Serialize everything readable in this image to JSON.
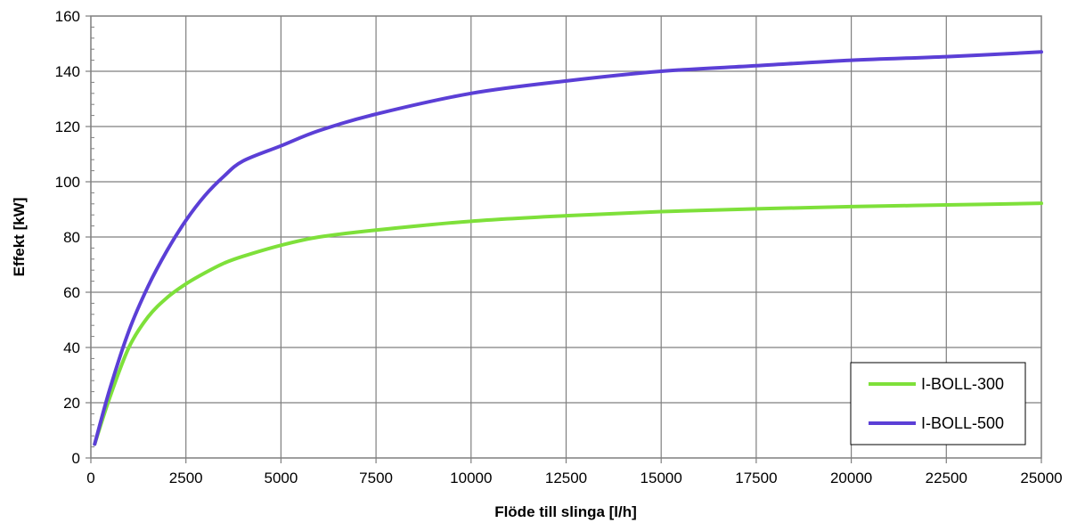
{
  "chart_data": {
    "type": "line",
    "xlabel": "Flöde till slinga [l/h]",
    "ylabel": "Effekt [kW]",
    "xlim": [
      0,
      25000
    ],
    "ylim": [
      0,
      160
    ],
    "x_ticks": [
      "0",
      "2500",
      "5000",
      "7500",
      "10000",
      "12500",
      "15000",
      "17500",
      "20000",
      "22500",
      "25000"
    ],
    "y_ticks": [
      "0",
      "20",
      "40",
      "60",
      "80",
      "100",
      "120",
      "140",
      "160"
    ],
    "grid": true,
    "legend_position": "bottom-right",
    "series": [
      {
        "name": "I-BOLL-300",
        "color": "#7ee03a",
        "x": [
          100,
          500,
          1000,
          1500,
          2000,
          2500,
          3000,
          3500,
          4000,
          5000,
          6000,
          7500,
          10000,
          12500,
          15000,
          17500,
          20000,
          22500,
          25000
        ],
        "y": [
          5,
          22,
          40,
          51,
          58,
          63,
          67,
          70.5,
          73,
          77,
          80,
          82.5,
          85.7,
          87.7,
          89.2,
          90.2,
          91,
          91.6,
          92.2
        ]
      },
      {
        "name": "I-BOLL-500",
        "color": "#5b3fd6",
        "x": [
          100,
          500,
          1000,
          1500,
          2000,
          2500,
          3000,
          3500,
          4000,
          5000,
          6000,
          7500,
          10000,
          12500,
          15000,
          17500,
          20000,
          22500,
          25000
        ],
        "y": [
          5,
          25,
          46,
          62,
          75,
          86,
          95,
          102,
          107.5,
          113,
          118.5,
          124.5,
          132,
          136.5,
          140,
          142,
          144,
          145.3,
          147
        ]
      }
    ]
  }
}
